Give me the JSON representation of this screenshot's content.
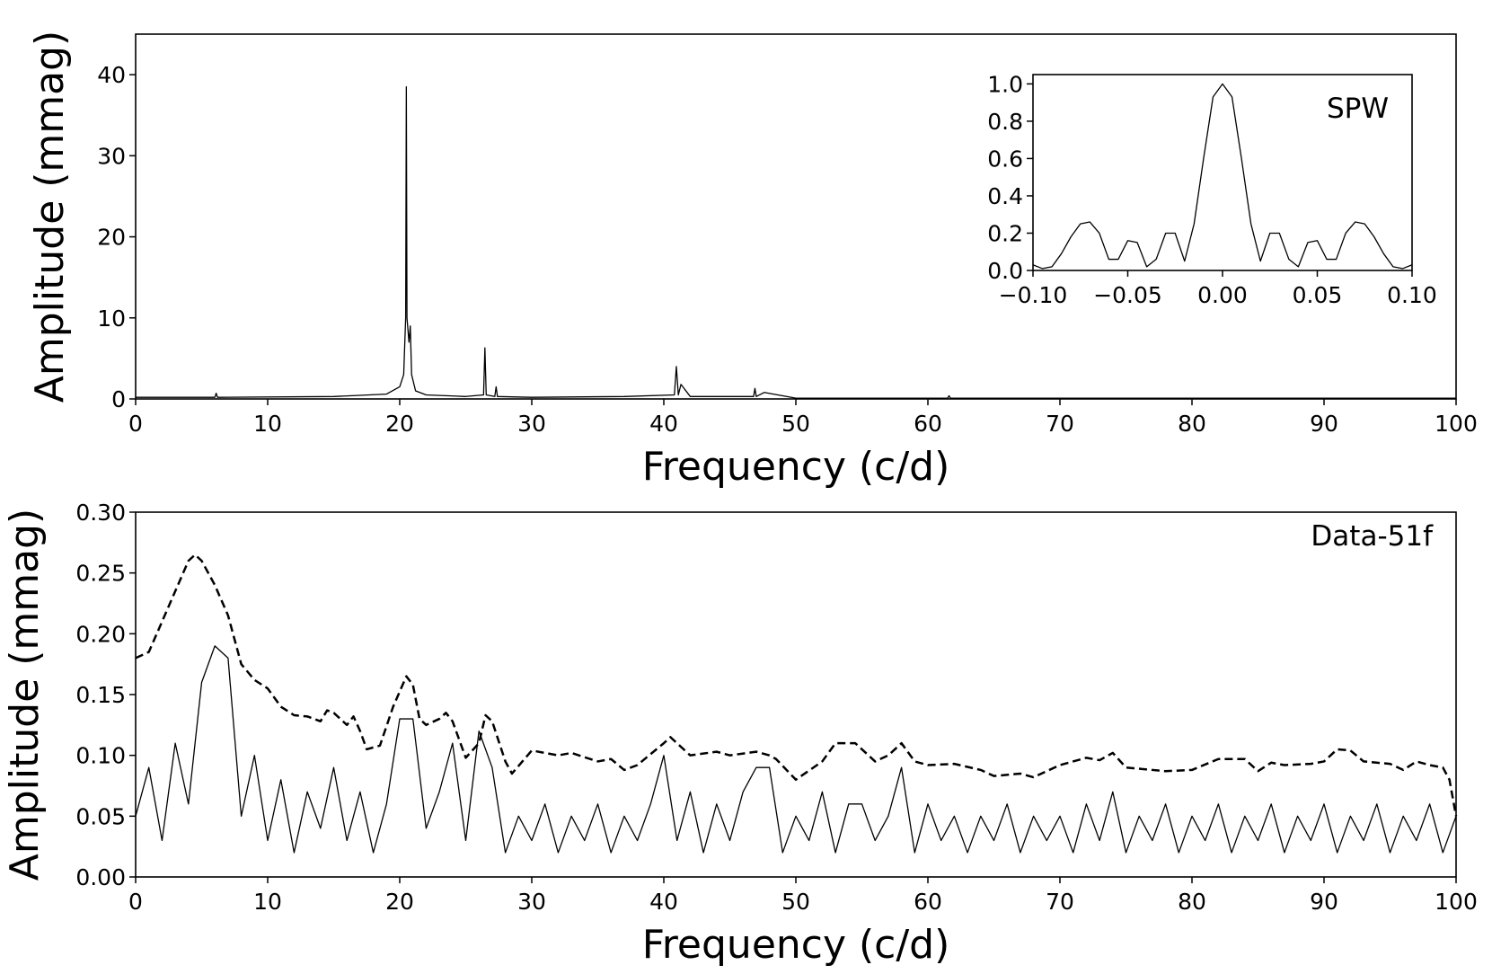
{
  "chart_data": [
    {
      "type": "line",
      "xlabel": "Frequency (c/d)",
      "ylabel": "Amplitude (mmag)",
      "xlim": [
        0,
        100
      ],
      "ylim": [
        0,
        45
      ],
      "xticks": [
        0,
        10,
        20,
        30,
        40,
        50,
        60,
        70,
        80,
        90,
        100
      ],
      "yticks": [
        0,
        10,
        20,
        30,
        40
      ],
      "series": [
        {
          "color": "#000000",
          "dashed": false,
          "x": [
            0,
            6,
            6.1,
            6.2,
            15,
            19,
            20,
            20.3,
            20.45,
            20.5,
            20.55,
            20.7,
            20.8,
            20.9,
            21.2,
            22,
            25,
            26.35,
            26.45,
            26.55,
            27.2,
            27.3,
            27.4,
            30,
            37,
            40.8,
            40.95,
            41.1,
            41.3,
            42,
            46.8,
            46.9,
            47,
            47.6,
            50,
            61.5,
            61.6,
            61.7,
            100
          ],
          "values": [
            0.2,
            0.2,
            0.7,
            0.2,
            0.3,
            0.6,
            1.5,
            3,
            10,
            38.5,
            10,
            7,
            9,
            3,
            1,
            0.5,
            0.3,
            0.5,
            6.3,
            0.5,
            0.3,
            1.5,
            0.3,
            0.2,
            0.3,
            0.5,
            4,
            0.5,
            1.8,
            0.3,
            0.3,
            1.3,
            0.3,
            0.8,
            0.1,
            0.1,
            0.4,
            0.1,
            0.1
          ]
        }
      ]
    },
    {
      "type": "line",
      "annotation": "SPW",
      "xlim": [
        -0.1,
        0.1
      ],
      "ylim": [
        0,
        1.05
      ],
      "xticks": [
        {
          "value": -0.1,
          "label": "−0.10"
        },
        {
          "value": -0.05,
          "label": "−0.05"
        },
        {
          "value": 0,
          "label": "0.00"
        },
        {
          "value": 0.05,
          "label": "0.05"
        },
        {
          "value": 0.1,
          "label": "0.10"
        }
      ],
      "yticks": [
        {
          "value": 0,
          "label": "0.0"
        },
        {
          "value": 0.2,
          "label": "0.2"
        },
        {
          "value": 0.4,
          "label": "0.4"
        },
        {
          "value": 0.6,
          "label": "0.6"
        },
        {
          "value": 0.8,
          "label": "0.8"
        },
        {
          "value": 1,
          "label": "1.0"
        }
      ],
      "series": [
        {
          "color": "#000000",
          "dashed": false,
          "x": [
            -0.1,
            -0.095,
            -0.09,
            -0.085,
            -0.08,
            -0.075,
            -0.07,
            -0.065,
            -0.06,
            -0.055,
            -0.05,
            -0.045,
            -0.04,
            -0.035,
            -0.03,
            -0.025,
            -0.02,
            -0.015,
            -0.01,
            -0.005,
            0,
            0.005,
            0.01,
            0.015,
            0.02,
            0.025,
            0.03,
            0.035,
            0.04,
            0.045,
            0.05,
            0.055,
            0.06,
            0.065,
            0.07,
            0.075,
            0.08,
            0.085,
            0.09,
            0.095,
            0.1
          ],
          "values": [
            0.03,
            0.01,
            0.02,
            0.09,
            0.18,
            0.25,
            0.26,
            0.2,
            0.06,
            0.06,
            0.16,
            0.15,
            0.02,
            0.06,
            0.2,
            0.2,
            0.05,
            0.25,
            0.6,
            0.93,
            1.0,
            0.93,
            0.6,
            0.25,
            0.05,
            0.2,
            0.2,
            0.06,
            0.02,
            0.15,
            0.16,
            0.06,
            0.06,
            0.2,
            0.26,
            0.25,
            0.18,
            0.09,
            0.02,
            0.01,
            0.03
          ]
        }
      ]
    },
    {
      "type": "line",
      "annotation": "Data-51f",
      "xlabel": "Frequency (c/d)",
      "ylabel": "Amplitude (mmag)",
      "xlim": [
        0,
        100
      ],
      "ylim": [
        0,
        0.3
      ],
      "xticks": [
        0,
        10,
        20,
        30,
        40,
        50,
        60,
        70,
        80,
        90,
        100
      ],
      "yticks": [
        {
          "value": 0,
          "label": "0.00"
        },
        {
          "value": 0.05,
          "label": "0.05"
        },
        {
          "value": 0.1,
          "label": "0.10"
        },
        {
          "value": 0.15,
          "label": "0.15"
        },
        {
          "value": 0.2,
          "label": "0.20"
        },
        {
          "value": 0.25,
          "label": "0.25"
        },
        {
          "value": 0.3,
          "label": "0.30"
        }
      ],
      "series": [
        {
          "color": "#000000",
          "dashed": false,
          "x": [
            0,
            1,
            2,
            3,
            4,
            5,
            6,
            7,
            8,
            9,
            10,
            11,
            12,
            13,
            14,
            15,
            16,
            17,
            18,
            19,
            20,
            21,
            22,
            23,
            24,
            25,
            26,
            27,
            28,
            29,
            30,
            31,
            32,
            33,
            34,
            35,
            36,
            37,
            38,
            39,
            40,
            41,
            42,
            43,
            44,
            45,
            46,
            47,
            48,
            49,
            50,
            51,
            52,
            53,
            54,
            55,
            56,
            57,
            58,
            59,
            60,
            61,
            62,
            63,
            64,
            65,
            66,
            67,
            68,
            69,
            70,
            71,
            72,
            73,
            74,
            75,
            76,
            77,
            78,
            79,
            80,
            81,
            82,
            83,
            84,
            85,
            86,
            87,
            88,
            89,
            90,
            91,
            92,
            93,
            94,
            95,
            96,
            97,
            98,
            99,
            100
          ],
          "values": [
            0.05,
            0.09,
            0.03,
            0.11,
            0.06,
            0.16,
            0.19,
            0.18,
            0.05,
            0.1,
            0.03,
            0.08,
            0.02,
            0.07,
            0.04,
            0.09,
            0.03,
            0.07,
            0.02,
            0.06,
            0.13,
            0.13,
            0.04,
            0.07,
            0.11,
            0.03,
            0.12,
            0.09,
            0.02,
            0.05,
            0.03,
            0.06,
            0.02,
            0.05,
            0.03,
            0.06,
            0.02,
            0.05,
            0.03,
            0.06,
            0.1,
            0.03,
            0.07,
            0.02,
            0.06,
            0.03,
            0.07,
            0.09,
            0.09,
            0.02,
            0.05,
            0.03,
            0.07,
            0.02,
            0.06,
            0.06,
            0.03,
            0.05,
            0.09,
            0.02,
            0.06,
            0.03,
            0.05,
            0.02,
            0.05,
            0.03,
            0.06,
            0.02,
            0.05,
            0.03,
            0.05,
            0.02,
            0.06,
            0.03,
            0.07,
            0.02,
            0.05,
            0.03,
            0.06,
            0.02,
            0.05,
            0.03,
            0.06,
            0.02,
            0.05,
            0.03,
            0.06,
            0.02,
            0.05,
            0.03,
            0.06,
            0.02,
            0.05,
            0.03,
            0.06,
            0.02,
            0.05,
            0.03,
            0.06,
            0.02,
            0.05
          ]
        },
        {
          "color": "#000000",
          "dashed": true,
          "x": [
            0,
            1,
            2,
            3,
            4,
            4.5,
            5,
            6,
            7,
            8,
            9,
            10,
            11,
            12,
            13,
            14,
            14.5,
            15,
            16,
            16.5,
            17,
            17.5,
            18.5,
            19.5,
            20.5,
            21,
            21.5,
            22,
            23,
            23.5,
            24,
            25,
            26,
            26.5,
            27,
            28,
            28.5,
            30,
            32,
            33,
            35,
            36,
            37,
            38,
            40,
            40.5,
            42,
            44,
            45,
            47,
            48,
            48.5,
            50,
            52,
            53,
            54.5,
            56,
            57,
            58,
            59,
            60,
            62,
            64,
            65,
            67,
            68,
            70,
            72,
            73,
            74,
            75,
            78,
            80,
            82,
            84,
            85,
            86,
            87,
            89,
            90,
            91,
            92,
            93,
            95,
            96,
            97,
            98,
            99,
            99.5,
            100
          ],
          "values": [
            0.18,
            0.185,
            0.21,
            0.235,
            0.26,
            0.265,
            0.26,
            0.24,
            0.215,
            0.175,
            0.162,
            0.155,
            0.14,
            0.133,
            0.132,
            0.128,
            0.137,
            0.135,
            0.125,
            0.132,
            0.12,
            0.105,
            0.108,
            0.14,
            0.165,
            0.158,
            0.13,
            0.125,
            0.13,
            0.135,
            0.128,
            0.098,
            0.11,
            0.133,
            0.128,
            0.095,
            0.085,
            0.104,
            0.1,
            0.102,
            0.095,
            0.097,
            0.088,
            0.092,
            0.11,
            0.115,
            0.1,
            0.103,
            0.1,
            0.103,
            0.1,
            0.097,
            0.08,
            0.095,
            0.11,
            0.11,
            0.095,
            0.1,
            0.11,
            0.095,
            0.092,
            0.093,
            0.088,
            0.083,
            0.085,
            0.082,
            0.092,
            0.098,
            0.096,
            0.102,
            0.09,
            0.087,
            0.088,
            0.097,
            0.097,
            0.087,
            0.094,
            0.092,
            0.093,
            0.095,
            0.105,
            0.104,
            0.095,
            0.093,
            0.088,
            0.095,
            0.092,
            0.09,
            0.08,
            0.05
          ]
        }
      ]
    }
  ]
}
